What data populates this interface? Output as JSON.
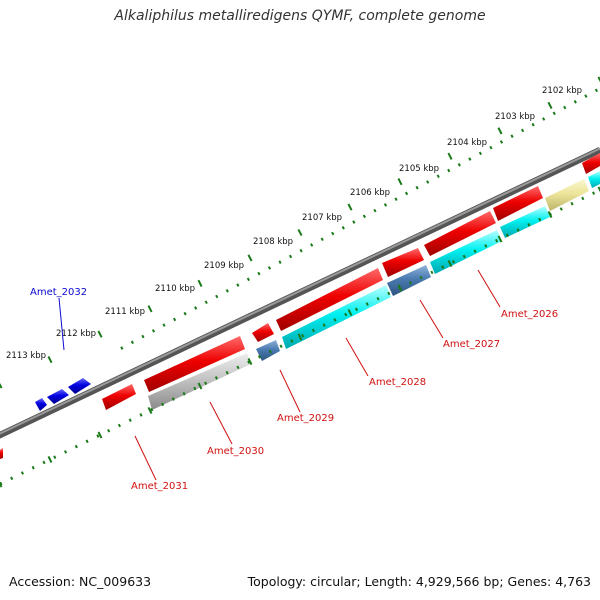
{
  "header": {
    "title": "Alkaliphilus metalliredigens QYMF, complete genome"
  },
  "footer": {
    "accession": "Accession: NC_009633",
    "summary": "Topology: circular; Length: 4,929,566 bp; Genes: 4,763"
  },
  "ticks": [
    "2102 kbp",
    "2103 kbp",
    "2104 kbp",
    "2105 kbp",
    "2106 kbp",
    "2107 kbp",
    "2108 kbp",
    "2109 kbp",
    "2110 kbp",
    "2111 kbp",
    "2112 kbp",
    "2113 kbp"
  ],
  "gene_labels": {
    "forward": [
      "Amet_2032"
    ],
    "reverse": [
      "Amet_2026",
      "Amet_2027",
      "Amet_2028",
      "Amet_2029",
      "Amet_2030",
      "Amet_2031"
    ]
  },
  "colors": {
    "backbone": "#7a7a7a",
    "tick_dots": "#1a7a1a",
    "forward_gene": "#0000e0",
    "cds_red": "#ee0000",
    "cds_cyan": "#00f0f0",
    "cds_gray": "#bdbdbd",
    "cds_steel": "#4a7ab0",
    "cds_khaki": "#ece59a",
    "label_red": "#d01010",
    "label_blue": "#0a0ad0"
  }
}
